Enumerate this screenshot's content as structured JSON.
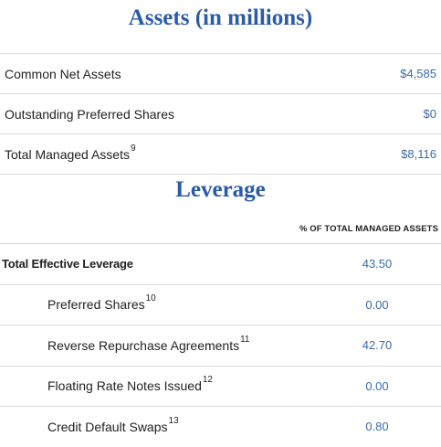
{
  "assets": {
    "title": "Assets (in millions)",
    "rows": [
      {
        "label": "Common Net Assets",
        "sup": "",
        "value": "$4,585"
      },
      {
        "label": "Outstanding Preferred Shares",
        "sup": "",
        "value": "$0"
      },
      {
        "label": "Total Managed Assets",
        "sup": "9",
        "value": "$8,116"
      }
    ]
  },
  "leverage": {
    "title": "Leverage",
    "column_header": "% OF TOTAL MANAGED ASSETS",
    "total": {
      "label": "Total Effective Leverage",
      "value": "43.50"
    },
    "rows": [
      {
        "label": "Preferred Shares",
        "sup": "10",
        "value": "0.00"
      },
      {
        "label": "Reverse Repurchase Agreements",
        "sup": "11",
        "value": "42.70"
      },
      {
        "label": "Floating Rate Notes Issued",
        "sup": "12",
        "value": "0.00"
      },
      {
        "label": "Credit Default Swaps",
        "sup": "13",
        "value": "0.80"
      }
    ]
  },
  "colors": {
    "accent": "#2b5ba8",
    "value_text": "#3a6aa8",
    "divider": "#dcdcdc"
  }
}
